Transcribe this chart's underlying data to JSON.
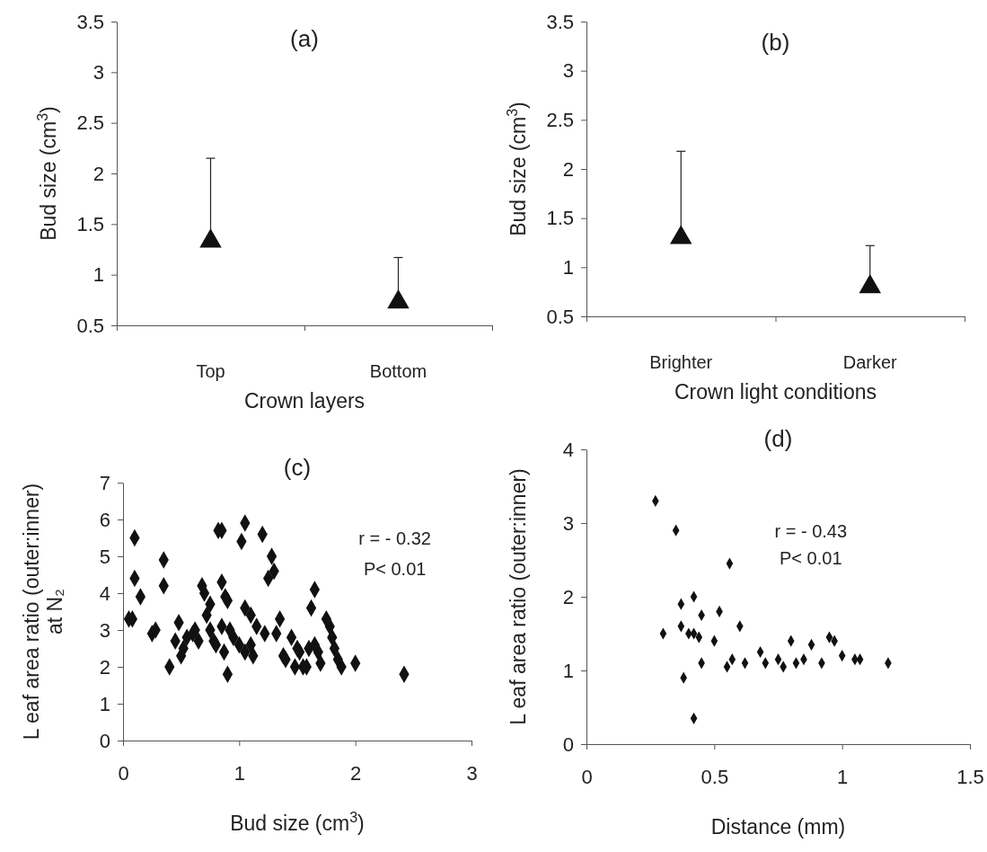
{
  "chart_data": [
    {
      "type": "scatter",
      "title": "(a)",
      "xlabel": "Crown layers",
      "ylabel": "Bud size (cm$^{3}$)",
      "categories": [
        "Top",
        "Bottom"
      ],
      "marker": "triangle",
      "color": "#111111",
      "values": [
        1.33,
        0.73
      ],
      "errors": [
        [
          1.42,
          2.15
        ],
        [
          0.82,
          1.17
        ]
      ],
      "ylim": [
        0.5,
        3.5
      ],
      "yticks": [
        0.5,
        1,
        1.5,
        2,
        2.5,
        3,
        3.5
      ]
    },
    {
      "type": "scatter",
      "title": "(b)",
      "xlabel": "Crown light conditions",
      "ylabel": "Bud size (cm$^{3}$)",
      "categories": [
        "Brighter",
        "Darker"
      ],
      "marker": "triangle",
      "color": "#111111",
      "values": [
        1.3,
        0.8
      ],
      "errors": [
        [
          1.4,
          2.18
        ],
        [
          0.9,
          1.22
        ]
      ],
      "ylim": [
        0.5,
        3.5
      ],
      "yticks": [
        0.5,
        1,
        1.5,
        2,
        2.5,
        3,
        3.5
      ]
    },
    {
      "type": "scatter",
      "title": "(c)",
      "xlabel": "Bud size (cm$^{3}$)",
      "ylabel": "L eaf area ratio (outer:inner)\nat N₂",
      "marker": "diamond",
      "color": "#111111",
      "annotations": [
        "r = - 0.32",
        "P< 0.01"
      ],
      "x": [
        0.05,
        0.08,
        0.1,
        0.1,
        0.15,
        0.25,
        0.28,
        0.35,
        0.35,
        0.4,
        0.45,
        0.48,
        0.5,
        0.52,
        0.55,
        0.6,
        0.62,
        0.65,
        0.68,
        0.7,
        0.72,
        0.75,
        0.75,
        0.78,
        0.8,
        0.82,
        0.85,
        0.85,
        0.85,
        0.87,
        0.88,
        0.9,
        0.9,
        0.92,
        0.95,
        1.0,
        1.02,
        1.05,
        1.05,
        1.05,
        1.1,
        1.1,
        1.12,
        1.15,
        1.2,
        1.22,
        1.25,
        1.28,
        1.3,
        1.32,
        1.35,
        1.38,
        1.4,
        1.45,
        1.48,
        1.5,
        1.52,
        1.55,
        1.58,
        1.6,
        1.62,
        1.65,
        1.65,
        1.68,
        1.7,
        1.75,
        1.78,
        1.8,
        1.82,
        1.85,
        1.88,
        2.0,
        2.42
      ],
      "values": [
        3.3,
        3.3,
        5.5,
        4.4,
        3.9,
        2.9,
        3.0,
        4.9,
        4.2,
        2.0,
        2.7,
        3.2,
        2.3,
        2.5,
        2.8,
        2.9,
        3.0,
        2.7,
        4.2,
        4.0,
        3.4,
        3.7,
        3.0,
        2.7,
        2.6,
        5.7,
        5.7,
        4.3,
        3.1,
        2.4,
        3.9,
        3.8,
        1.8,
        3.0,
        2.8,
        2.6,
        5.4,
        5.9,
        3.6,
        2.4,
        3.4,
        2.6,
        2.3,
        3.1,
        5.6,
        2.9,
        4.4,
        5.0,
        4.6,
        2.9,
        3.3,
        2.3,
        2.2,
        2.8,
        2.0,
        2.5,
        2.4,
        2.0,
        2.0,
        2.5,
        3.6,
        4.1,
        2.6,
        2.4,
        2.1,
        3.3,
        3.1,
        2.8,
        2.5,
        2.2,
        2.0,
        2.1,
        1.8
      ],
      "xlim": [
        0,
        3
      ],
      "xticks": [
        0,
        1,
        2,
        3
      ],
      "ylim": [
        0,
        7
      ],
      "yticks": [
        0,
        1,
        2,
        3,
        4,
        5,
        6,
        7
      ]
    },
    {
      "type": "scatter",
      "title": "(d)",
      "xlabel": "Distance (mm)",
      "ylabel": "L eaf area ratio (outer:inner)",
      "marker": "diamond",
      "color": "#111111",
      "annotations": [
        "r = - 0.43",
        "P< 0.01"
      ],
      "x": [
        0.27,
        0.35,
        0.3,
        0.37,
        0.37,
        0.38,
        0.4,
        0.42,
        0.42,
        0.42,
        0.44,
        0.45,
        0.45,
        0.5,
        0.52,
        0.55,
        0.56,
        0.57,
        0.6,
        0.62,
        0.68,
        0.7,
        0.75,
        0.77,
        0.8,
        0.82,
        0.85,
        0.88,
        0.92,
        0.95,
        0.97,
        1.0,
        1.05,
        1.07,
        1.18
      ],
      "values": [
        3.3,
        2.9,
        1.5,
        1.9,
        1.6,
        0.9,
        1.5,
        1.5,
        2.0,
        0.35,
        1.45,
        1.1,
        1.75,
        1.4,
        1.8,
        1.05,
        2.45,
        1.15,
        1.6,
        1.1,
        1.25,
        1.1,
        1.15,
        1.05,
        1.4,
        1.1,
        1.15,
        1.35,
        1.1,
        1.45,
        1.4,
        1.2,
        1.15,
        1.15,
        1.1
      ],
      "xlim": [
        0,
        1.5
      ],
      "xticks": [
        0,
        0.5,
        1,
        1.5
      ],
      "ylim": [
        0,
        4
      ],
      "yticks": [
        0,
        1,
        2,
        3,
        4
      ]
    }
  ]
}
